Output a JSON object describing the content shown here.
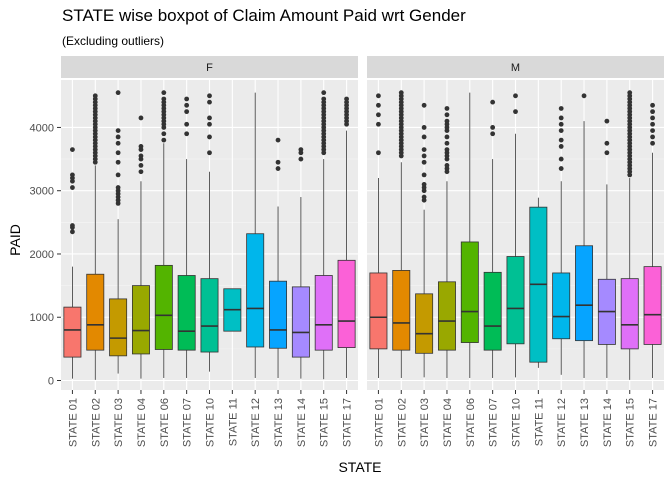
{
  "chart_data": {
    "type": "boxplot",
    "title": "STATE wise boxpot of Claim Amount Paid wrt Gender",
    "subtitle": "(Excluding outliers)",
    "xlabel": "STATE",
    "ylabel": "PAID",
    "ylim": [
      -150,
      4750
    ],
    "y_ticks": [
      0,
      1000,
      2000,
      3000,
      4000
    ],
    "grid": true,
    "legend": "none",
    "colors": {
      "STATE 01": "#F8766D",
      "STATE 02": "#E38900",
      "STATE 03": "#C49A00",
      "STATE 04": "#99A800",
      "STATE 06": "#53B400",
      "STATE 07": "#00BC56",
      "STATE 10": "#00C094",
      "STATE 11": "#00BFC4",
      "STATE 12": "#00B6EB",
      "STATE 13": "#06A4FF",
      "STATE 14": "#A58AFF",
      "STATE 15": "#DF70F8",
      "STATE 17": "#FB61D7"
    },
    "panels": [
      {
        "label": "F",
        "categories": [
          "STATE 01",
          "STATE 02",
          "STATE 03",
          "STATE 04",
          "STATE 06",
          "STATE 07",
          "STATE 10",
          "STATE 11",
          "STATE 12",
          "STATE 13",
          "STATE 14",
          "STATE 15",
          "STATE 17"
        ],
        "boxes": [
          {
            "min": 30,
            "q1": 370,
            "median": 800,
            "q3": 1160,
            "max": 1800,
            "outliers": [
              2350,
              2420,
              2450,
              3050,
              3150,
              3200,
              3250,
              3650
            ]
          },
          {
            "min": 10,
            "q1": 480,
            "median": 880,
            "q3": 1680,
            "max": 3400,
            "outliers": [
              3450,
              3500,
              3550,
              3600,
              3650,
              3700,
              3750,
              3800,
              3850,
              3900,
              3950,
              4000,
              4050,
              4100,
              4150,
              4200,
              4250,
              4300,
              4350,
              4400,
              4450,
              4500
            ]
          },
          {
            "min": 110,
            "q1": 390,
            "median": 670,
            "q3": 1290,
            "max": 2550,
            "outliers": [
              2800,
              2850,
              2900,
              2950,
              3000,
              3050,
              3250,
              3450,
              3600,
              3750,
              3850,
              3950,
              4550
            ]
          },
          {
            "min": 30,
            "q1": 420,
            "median": 790,
            "q3": 1500,
            "max": 3150,
            "outliers": [
              3300,
              3400,
              3500,
              3550,
              3650,
              3700,
              4150
            ]
          },
          {
            "min": 40,
            "q1": 490,
            "median": 1030,
            "q3": 1820,
            "max": 3750,
            "outliers": [
              3800,
              3900,
              4000,
              4050,
              4100,
              4150,
              4200,
              4250,
              4300,
              4350,
              4400,
              4450,
              4550
            ]
          },
          {
            "min": 40,
            "q1": 480,
            "median": 780,
            "q3": 1660,
            "max": 3500,
            "outliers": [
              3900,
              4050,
              4250,
              4350,
              4450
            ]
          },
          {
            "min": 140,
            "q1": 450,
            "median": 860,
            "q3": 1610,
            "max": 3300,
            "outliers": [
              3600,
              3850,
              4050,
              4150,
              4400,
              4500
            ]
          },
          {
            "min": 780,
            "q1": 780,
            "median": 1120,
            "q3": 1450,
            "max": 1450,
            "outliers": []
          },
          {
            "min": 40,
            "q1": 530,
            "median": 1140,
            "q3": 2320,
            "max": 4550,
            "outliers": []
          },
          {
            "min": 40,
            "q1": 510,
            "median": 800,
            "q3": 1570,
            "max": 2750,
            "outliers": [
              3350,
              3450,
              3800
            ]
          },
          {
            "min": 30,
            "q1": 370,
            "median": 760,
            "q3": 1480,
            "max": 2900,
            "outliers": [
              3500,
              3600,
              3650
            ]
          },
          {
            "min": 20,
            "q1": 480,
            "median": 880,
            "q3": 1660,
            "max": 3500,
            "outliers": [
              3600,
              3650,
              3700,
              3750,
              3800,
              3850,
              3900,
              3950,
              4000,
              4050,
              4100,
              4150,
              4200,
              4250,
              4300,
              4350,
              4400,
              4450,
              4550
            ]
          },
          {
            "min": 40,
            "q1": 520,
            "median": 940,
            "q3": 1900,
            "max": 3950,
            "outliers": [
              4050,
              4100,
              4150,
              4200,
              4250,
              4300,
              4350,
              4400,
              4450
            ]
          }
        ]
      },
      {
        "label": "M",
        "categories": [
          "STATE 01",
          "STATE 02",
          "STATE 03",
          "STATE 04",
          "STATE 06",
          "STATE 07",
          "STATE 10",
          "STATE 11",
          "STATE 12",
          "STATE 13",
          "STATE 14",
          "STATE 15",
          "STATE 17"
        ],
        "boxes": [
          {
            "min": 40,
            "q1": 500,
            "median": 1000,
            "q3": 1700,
            "max": 3200,
            "outliers": [
              3600,
              4050,
              4200,
              4350,
              4500
            ]
          },
          {
            "min": 40,
            "q1": 480,
            "median": 910,
            "q3": 1740,
            "max": 3450,
            "outliers": [
              3550,
              3600,
              3650,
              3700,
              3750,
              3800,
              3850,
              3900,
              3950,
              4000,
              4050,
              4100,
              4150,
              4200,
              4250,
              4300,
              4350,
              4400,
              4450,
              4500,
              4550
            ]
          },
          {
            "min": 50,
            "q1": 430,
            "median": 740,
            "q3": 1370,
            "max": 2700,
            "outliers": [
              2850,
              2900,
              3000,
              3050,
              3100,
              3250,
              3450,
              3550,
              3650,
              3850,
              4000,
              4350
            ]
          },
          {
            "min": 40,
            "q1": 480,
            "median": 940,
            "q3": 1560,
            "max": 3150,
            "outliers": [
              3300,
              3350,
              3400,
              3500,
              3550,
              3600,
              3650,
              3750,
              3850,
              3950,
              4000,
              4050,
              4100,
              4200,
              4300
            ]
          },
          {
            "min": 40,
            "q1": 600,
            "median": 1090,
            "q3": 2190,
            "max": 4550,
            "outliers": []
          },
          {
            "min": 40,
            "q1": 480,
            "median": 860,
            "q3": 1710,
            "max": 3500,
            "outliers": [
              3900,
              4000,
              4400
            ]
          },
          {
            "min": 50,
            "q1": 580,
            "median": 1140,
            "q3": 1960,
            "max": 3900,
            "outliers": [
              4250,
              4500
            ]
          },
          {
            "min": 200,
            "q1": 290,
            "median": 1520,
            "q3": 2740,
            "max": 2890,
            "outliers": []
          },
          {
            "min": 90,
            "q1": 660,
            "median": 1010,
            "q3": 1700,
            "max": 3150,
            "outliers": [
              3350,
              3500,
              3700,
              3800,
              3950,
              4050,
              4150,
              4300
            ]
          },
          {
            "min": 40,
            "q1": 630,
            "median": 1190,
            "q3": 2130,
            "max": 4100,
            "outliers": [
              4500
            ]
          },
          {
            "min": 40,
            "q1": 570,
            "median": 1090,
            "q3": 1600,
            "max": 3100,
            "outliers": [
              3600,
              3750,
              4100
            ]
          },
          {
            "min": 10,
            "q1": 500,
            "median": 880,
            "q3": 1610,
            "max": 3200,
            "outliers": [
              3250,
              3300,
              3350,
              3400,
              3450,
              3500,
              3550,
              3600,
              3650,
              3700,
              3750,
              3800,
              3850,
              3900,
              3950,
              4000,
              4050,
              4100,
              4150,
              4200,
              4250,
              4300,
              4350,
              4400,
              4450,
              4500,
              4550
            ]
          },
          {
            "min": 40,
            "q1": 570,
            "median": 1040,
            "q3": 1800,
            "max": 3600,
            "outliers": [
              3750,
              3850,
              3950,
              4050,
              4150,
              4250,
              4350
            ]
          }
        ]
      }
    ]
  }
}
